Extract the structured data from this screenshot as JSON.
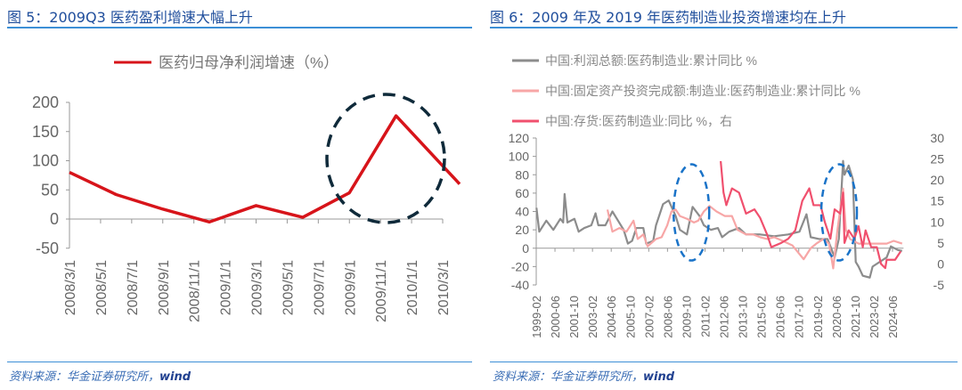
{
  "left": {
    "title": "图 5：2009Q3 医药盈利增速大幅上升",
    "source": "资料来源：华金证券研究所，",
    "source_tail": "wind"
  },
  "right": {
    "title": "图 6：2009 年及 2019 年医药制造业投资增速均在上升",
    "source": "资料来源：华金证券研究所，",
    "source_tail": "wind"
  },
  "chart_data": [
    {
      "type": "line",
      "title": "",
      "legend_position": "top",
      "grid": false,
      "categories": [
        "2008/3/1",
        "2008/5/1",
        "2008/7/1",
        "2008/9/1",
        "2008/11/1",
        "2009/1/1",
        "2009/3/1",
        "2009/5/1",
        "2009/7/1",
        "2009/9/1",
        "2009/11/1",
        "2010/1/1",
        "2010/3/1"
      ],
      "ylim": [
        -50,
        200
      ],
      "yticks": [
        "200",
        "150",
        "100",
        "50",
        "0",
        "-50"
      ],
      "series": [
        {
          "name": "医药归母净利润增速（%）",
          "color": "#d7141a",
          "x": [
            "2008Q1",
            "2008Q2",
            "2008Q3",
            "2008Q4",
            "2009Q1",
            "2009Q2",
            "2009Q3",
            "2009Q4",
            "2010Q1"
          ],
          "values": [
            80,
            42,
            17,
            -5,
            23,
            3,
            45,
            177,
            60
          ]
        }
      ],
      "annotation": "dashed circle around 2009Q3–2010Q1"
    },
    {
      "type": "line",
      "title": "",
      "legend_position": "top",
      "grid": false,
      "xticks": [
        "1999-02",
        "2000-06",
        "2001-10",
        "2003-02",
        "2004-06",
        "2005-10",
        "2007-02",
        "2008-06",
        "2009-10",
        "2011-02",
        "2012-06",
        "2013-10",
        "2015-02",
        "2016-06",
        "2017-10",
        "2019-02",
        "2020-06",
        "2021-10",
        "2023-02",
        "2024-06"
      ],
      "ylim": [
        -40,
        120
      ],
      "yticks": [
        "120",
        "100",
        "80",
        "60",
        "40",
        "20",
        "0",
        "-20",
        "-40"
      ],
      "y2lim": [
        -5,
        30
      ],
      "y2ticks": [
        "30",
        "25",
        "20",
        "15",
        "10",
        "5",
        "0",
        "-5"
      ],
      "series": [
        {
          "name": "中国:利润总额:医药制造业:累计同比 %",
          "color": "#8c8c8c",
          "axis": "left",
          "x": [
            1999.1,
            1999.3,
            1999.8,
            2000.3,
            2000.8,
            2001.0,
            2001.1,
            2001.3,
            2001.8,
            2002.1,
            2002.5,
            2003.0,
            2003.3,
            2003.5,
            2004.0,
            2004.5,
            2004.9,
            2005.3,
            2005.6,
            2005.9,
            2006.2,
            2006.7,
            2006.9,
            2007.4,
            2007.6,
            2008.1,
            2008.5,
            2009.0,
            2009.3,
            2009.8,
            2010.2,
            2010.7,
            2011.0,
            2011.5,
            2012.0,
            2012.3,
            2012.8,
            2013.5,
            2014.0,
            2015.0,
            2016.0,
            2017.0,
            2017.8,
            2018.3,
            2018.6,
            2019.2,
            2019.8,
            2020.3,
            2020.6,
            2020.9,
            2021.0,
            2021.3,
            2021.6,
            2021.8,
            2022.0,
            2022.3,
            2022.8,
            2023.0,
            2023.5,
            2024.0,
            2024.3,
            2024.8,
            2025.1
          ],
          "values": [
            44,
            18,
            30,
            20,
            32,
            28,
            59,
            28,
            32,
            18,
            22,
            25,
            38,
            25,
            25,
            40,
            30,
            20,
            5,
            8,
            22,
            22,
            5,
            8,
            25,
            48,
            52,
            35,
            20,
            15,
            45,
            35,
            25,
            20,
            22,
            12,
            18,
            22,
            15,
            15,
            13,
            15,
            18,
            37,
            12,
            10,
            10,
            -10,
            10,
            95,
            80,
            90,
            75,
            -15,
            -20,
            -30,
            -32,
            -20,
            -15,
            -10,
            2,
            -2,
            -3
          ]
        },
        {
          "name": "中国:固定资产投资完成额:制造业:医药制造业:累计同比 %",
          "color": "#f7a6a6",
          "axis": "left",
          "x": [
            2004.15,
            2004.5,
            2005.0,
            2005.5,
            2006.0,
            2006.3,
            2006.7,
            2007.0,
            2007.6,
            2008.0,
            2008.4,
            2008.7,
            2009.0,
            2009.3,
            2009.8,
            2010.3,
            2010.6,
            2011.0,
            2011.4,
            2011.9,
            2012.5,
            2013.0,
            2013.4,
            2014.0,
            2014.5,
            2015.0,
            2015.5,
            2016.0,
            2016.6,
            2017.3,
            2018.1,
            2018.6,
            2019.0,
            2019.5,
            2019.9,
            2020.2,
            2020.5,
            2020.9,
            2021.1,
            2021.4,
            2022.0,
            2022.5,
            2023.0,
            2024.0,
            2024.5,
            2025.1
          ],
          "values": [
            42,
            18,
            22,
            18,
            30,
            10,
            15,
            2,
            10,
            12,
            25,
            40,
            42,
            35,
            32,
            28,
            30,
            40,
            46,
            40,
            35,
            35,
            20,
            15,
            15,
            12,
            10,
            12,
            8,
            3,
            -12,
            0,
            5,
            10,
            5,
            -22,
            20,
            65,
            20,
            10,
            5,
            5,
            5,
            5,
            8,
            5
          ]
        },
        {
          "name": "中国:存货:医药制造业:同比 %，右",
          "color": "#f0506e",
          "axis": "right",
          "x": [
            2012.2,
            2012.4,
            2012.6,
            2013.0,
            2013.5,
            2014.0,
            2014.6,
            2015.0,
            2015.5,
            2015.8,
            2016.5,
            2017.0,
            2017.5,
            2018.0,
            2018.5,
            2018.8,
            2019.3,
            2019.6,
            2020.0,
            2020.3,
            2020.7,
            2020.9,
            2021.0,
            2021.3,
            2021.7,
            2022.0,
            2022.3,
            2022.5,
            2022.9,
            2023.3,
            2023.6,
            2023.9,
            2024.0,
            2024.6,
            2025.0
          ],
          "values": [
            24.5,
            17,
            14,
            18,
            17,
            12,
            13,
            11,
            7,
            4,
            5,
            6,
            8,
            15,
            18,
            14,
            14,
            10,
            6,
            13,
            12,
            17,
            5,
            8,
            6,
            9,
            4,
            8,
            4,
            4,
            0,
            -1,
            1,
            1,
            3
          ]
        }
      ],
      "annotation": "dashed ellipses around 2009-10 and 2020"
    }
  ],
  "colors": {
    "title": "#1f4e9c",
    "rule": "#3c8fd6",
    "ellipse_left": "#0f2a3a",
    "ellipse_right": "#1a73c8"
  }
}
